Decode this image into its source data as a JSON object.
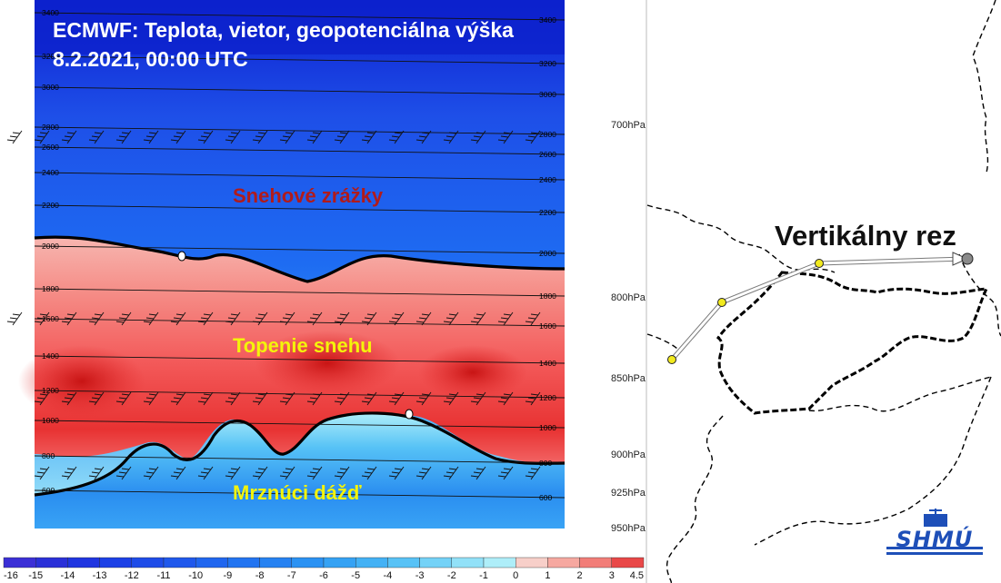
{
  "header": {
    "title_line1": "ECMWF: Teplota, vietor, geopotenciálna výška",
    "title_line2": "8.2.2021, 00:00 UTC"
  },
  "zones": {
    "snow": "Snehové zrážky",
    "melt": "Topenie snehu",
    "freezing_rain": "Mrznúci dážď"
  },
  "map": {
    "title": "Vertikálny rez",
    "logo_text": "SHMÚ"
  },
  "pressure_levels": [
    "700hPa",
    "800hPa",
    "850hPa",
    "900hPa",
    "925hPa",
    "950hPa"
  ],
  "colorbar": {
    "labels": [
      "-16",
      "-15",
      "-14",
      "-13",
      "-12",
      "-11",
      "-10",
      "-9",
      "-8",
      "-7",
      "-6",
      "-5",
      "-4",
      "-3",
      "-2",
      "-1",
      "0",
      "1",
      "2",
      "3",
      "4.5"
    ]
  },
  "colors": {
    "cold_deep": "#0d1fd0",
    "cold_mid": "#1e6cf2",
    "cold_light": "#39a3f5",
    "near_zero_cold": "#aeeef9",
    "near_zero_warm": "#f7b6b0",
    "warm_mid": "#f35a5a",
    "warm_deep": "#d81a1a",
    "snow_label": "#b01b1b",
    "warm_label": "#f4f40a",
    "map_route": "#f2ea1e"
  },
  "chart_data": {
    "type": "heatmap",
    "title": "ECMWF: Teplota, vietor, geopotenciálna výška",
    "subtitle": "8.2.2021, 00:00 UTC",
    "variable": "temperature (°C)",
    "color_scale": [
      -16,
      -15,
      -14,
      -13,
      -12,
      -11,
      -10,
      -9,
      -8,
      -7,
      -6,
      -5,
      -4,
      -3,
      -2,
      -1,
      0,
      1,
      2,
      3,
      4.5
    ],
    "y_axis_levels_hPa": [
      700,
      800,
      850,
      900,
      925,
      950
    ],
    "geopotential_isolines_left": [
      3400,
      3200,
      3000,
      2800,
      2600,
      2400,
      2200,
      2000,
      1800,
      1600,
      1400,
      1200,
      1000,
      800,
      600
    ],
    "geopotential_isolines_right": [
      3400,
      3200,
      3000,
      2800,
      2600,
      2400,
      2200,
      2000,
      1800,
      1600,
      1400,
      1200,
      1000,
      800,
      600
    ],
    "zero_isotherm_upper_height_m": 2000,
    "zero_isotherm_lower_height_m_range": [
      800,
      1000
    ],
    "annotations": [
      "Snehové zrážky",
      "Topenie snehu",
      "Mrznúci dážď"
    ]
  }
}
